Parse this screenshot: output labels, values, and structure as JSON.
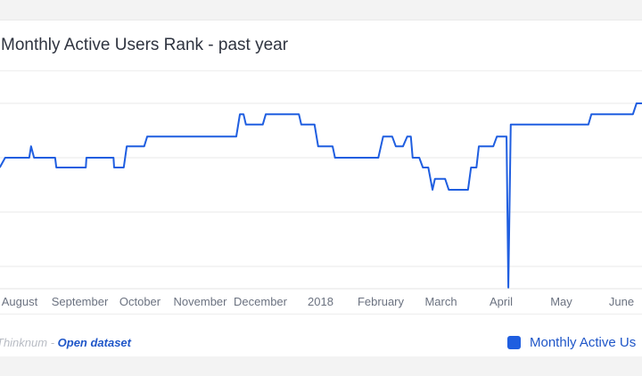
{
  "chart_data": {
    "type": "line",
    "title": "Monthly Active Users Rank - past year",
    "xlabel": "",
    "ylabel": "",
    "x_ticks": [
      "August",
      "September",
      "October",
      "November",
      "December",
      "2018",
      "February",
      "March",
      "April",
      "May",
      "June"
    ],
    "x_unit": "months since August (0 = August tick)",
    "xlim": [
      -0.33,
      10.34
    ],
    "ylim": [
      0.6,
      4.5
    ],
    "y_gridlines": [
      1,
      2,
      3,
      4
    ],
    "grid": true,
    "legend": {
      "position": "bottom-right",
      "entries": [
        "Monthly Active Us"
      ]
    },
    "series": [
      {
        "name": "Monthly Active Users Rank",
        "color": "#1f5ee0",
        "x": [
          -0.33,
          -0.24,
          0.16,
          0.19,
          0.24,
          0.59,
          0.61,
          1.1,
          1.11,
          1.56,
          1.57,
          1.73,
          1.78,
          2.07,
          2.12,
          3.6,
          3.66,
          3.72,
          3.76,
          4.04,
          4.09,
          4.64,
          4.68,
          4.9,
          4.96,
          5.2,
          5.24,
          5.96,
          6.04,
          6.19,
          6.25,
          6.37,
          6.44,
          6.5,
          6.53,
          6.64,
          6.7,
          6.79,
          6.86,
          6.9,
          7.07,
          7.13,
          7.45,
          7.5,
          7.59,
          7.63,
          7.87,
          7.93,
          8.09,
          8.12,
          8.16,
          9.45,
          9.5,
          10.19,
          10.25,
          10.34
        ],
        "y": [
          2.82,
          3.0,
          3.0,
          3.21,
          3.0,
          3.0,
          2.82,
          2.82,
          3.0,
          3.0,
          2.82,
          2.82,
          3.21,
          3.21,
          3.39,
          3.39,
          3.8,
          3.8,
          3.61,
          3.61,
          3.8,
          3.8,
          3.61,
          3.61,
          3.21,
          3.21,
          3.0,
          3.0,
          3.39,
          3.39,
          3.21,
          3.21,
          3.39,
          3.39,
          3.0,
          3.0,
          2.82,
          2.82,
          2.41,
          2.61,
          2.61,
          2.41,
          2.41,
          2.82,
          2.82,
          3.21,
          3.21,
          3.39,
          3.39,
          0.61,
          3.61,
          3.61,
          3.8,
          3.8,
          4.0,
          4.0
        ]
      }
    ]
  },
  "footer": {
    "source": "Thinknum",
    "separator": " - ",
    "link": "Open dataset"
  }
}
